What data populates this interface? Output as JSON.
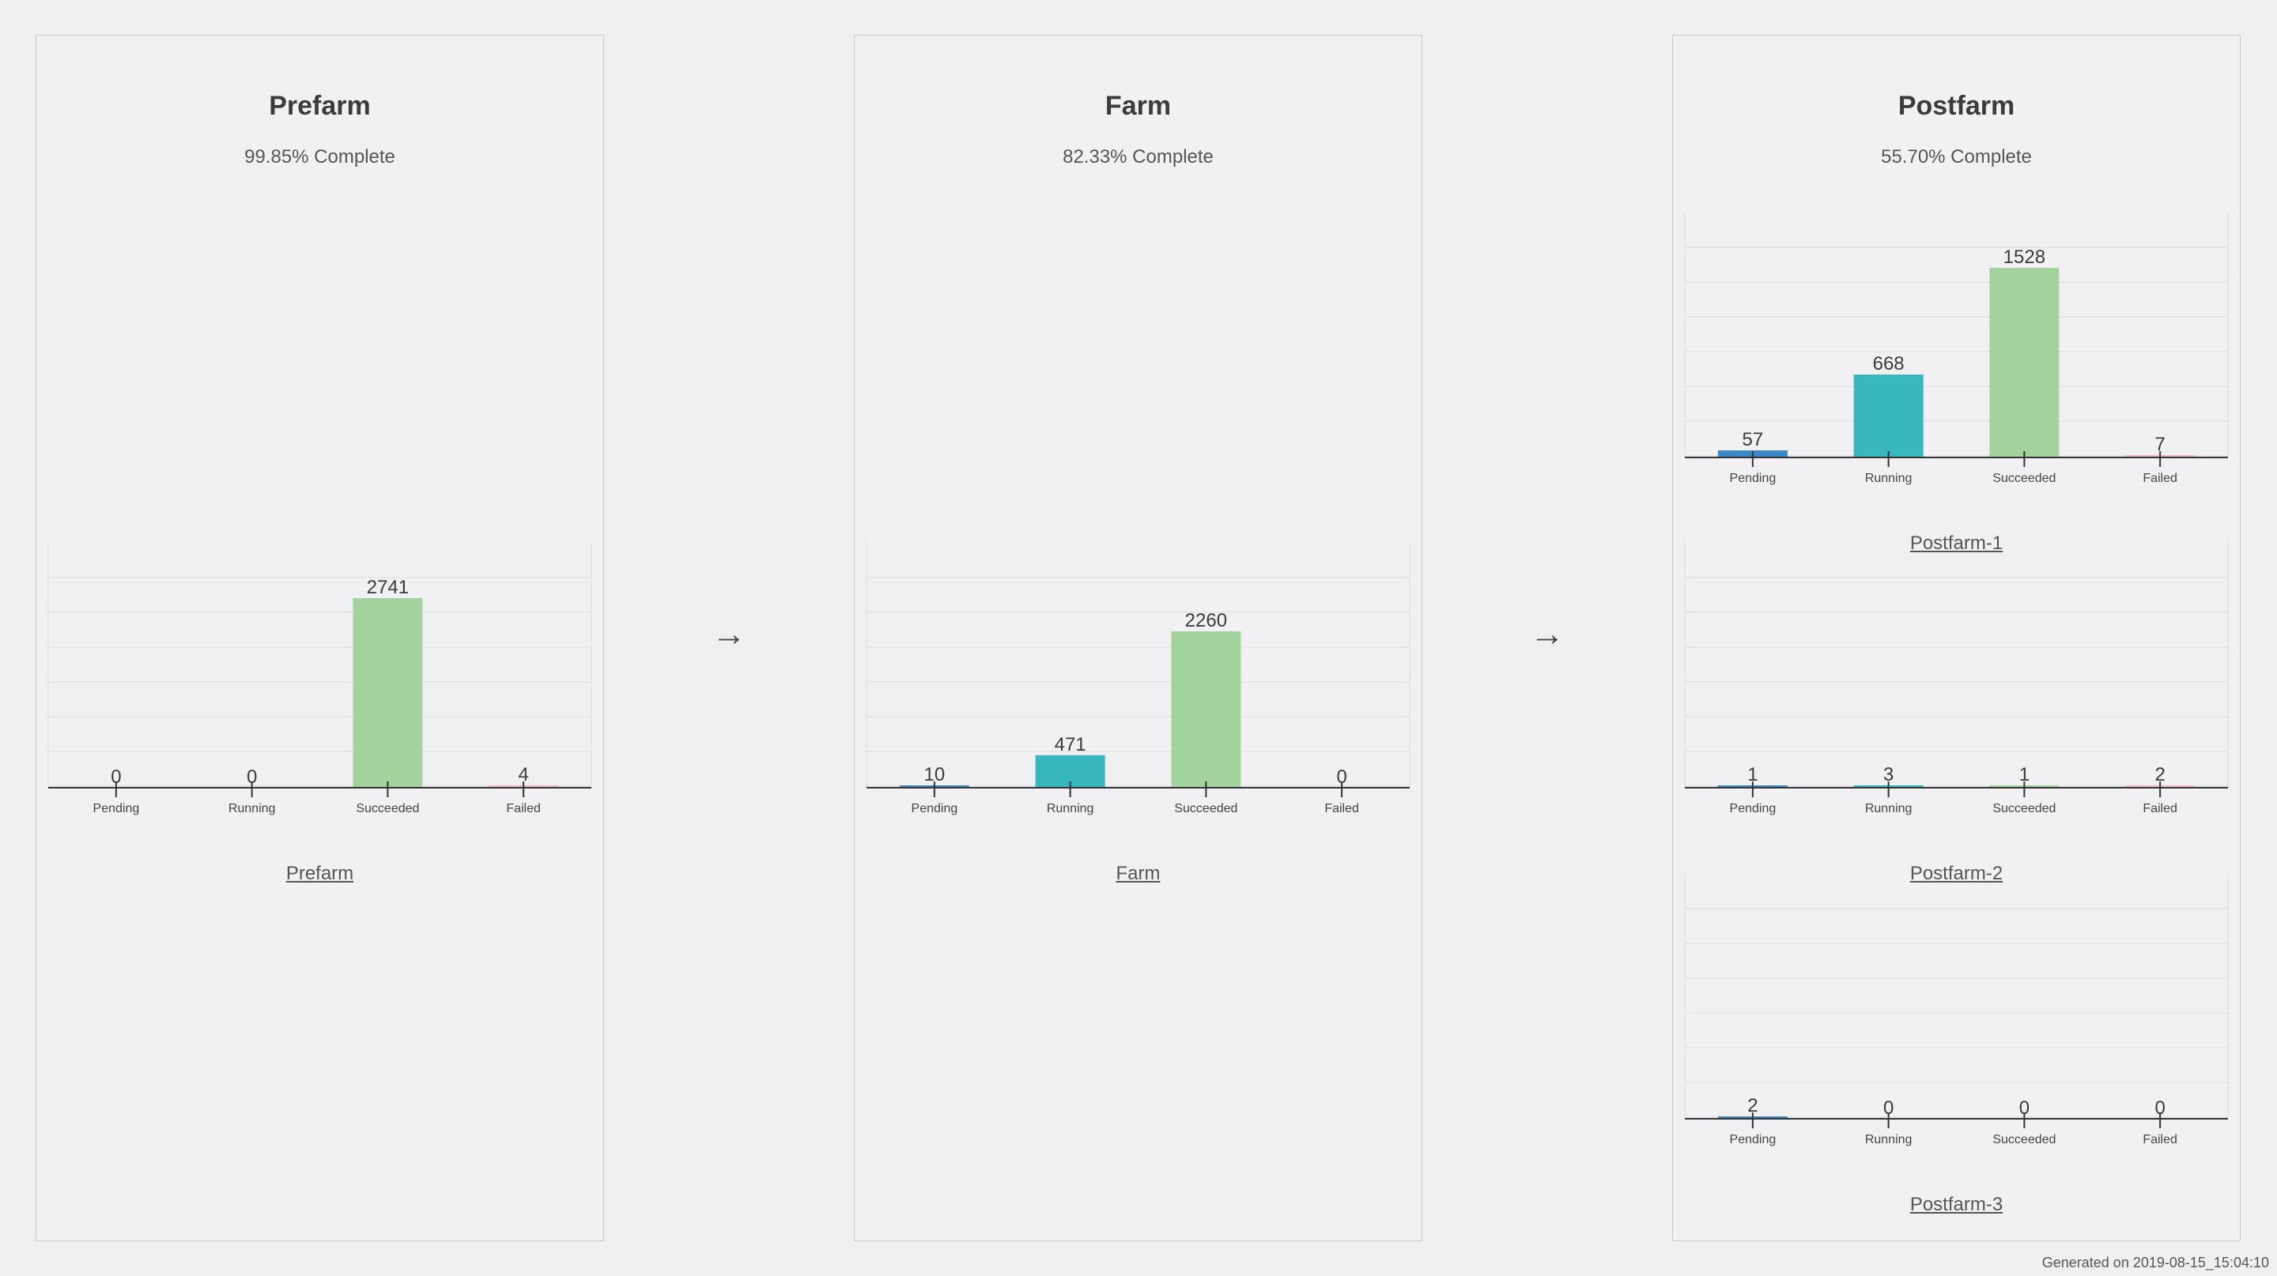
{
  "footer": "Generated on 2019-08-15_15:04:10",
  "arrows": [
    "→",
    "→"
  ],
  "colors": {
    "Pending": "#3d87c4",
    "Running": "#38b7be",
    "Succeeded": "#a3d39c",
    "Failed": "#f3b7c2"
  },
  "stages": [
    {
      "title": "Prefarm",
      "progress": "99.85% Complete"
    },
    {
      "title": "Farm",
      "progress": "82.33% Complete"
    },
    {
      "title": "Postfarm",
      "progress": "55.70% Complete"
    }
  ],
  "chart_data": [
    {
      "type": "bar",
      "title": "Prefarm",
      "categories": [
        "Pending",
        "Running",
        "Succeeded",
        "Failed"
      ],
      "values": [
        0,
        0,
        2741,
        4
      ],
      "ylim": [
        0,
        2741
      ]
    },
    {
      "type": "bar",
      "title": "Farm",
      "categories": [
        "Pending",
        "Running",
        "Succeeded",
        "Failed"
      ],
      "values": [
        10,
        471,
        2260,
        0
      ],
      "ylim": [
        0,
        2741
      ]
    },
    {
      "type": "bar",
      "title": "Postfarm-1",
      "categories": [
        "Pending",
        "Running",
        "Succeeded",
        "Failed"
      ],
      "values": [
        57,
        668,
        1528,
        7
      ],
      "ylim": [
        0,
        1528
      ]
    },
    {
      "type": "bar",
      "title": "Postfarm-2",
      "categories": [
        "Pending",
        "Running",
        "Succeeded",
        "Failed"
      ],
      "values": [
        1,
        3,
        1,
        2
      ],
      "ylim": [
        0,
        1528
      ]
    },
    {
      "type": "bar",
      "title": "Postfarm-3",
      "categories": [
        "Pending",
        "Running",
        "Succeeded",
        "Failed"
      ],
      "values": [
        2,
        0,
        0,
        0
      ],
      "ylim": [
        0,
        1528
      ]
    }
  ]
}
